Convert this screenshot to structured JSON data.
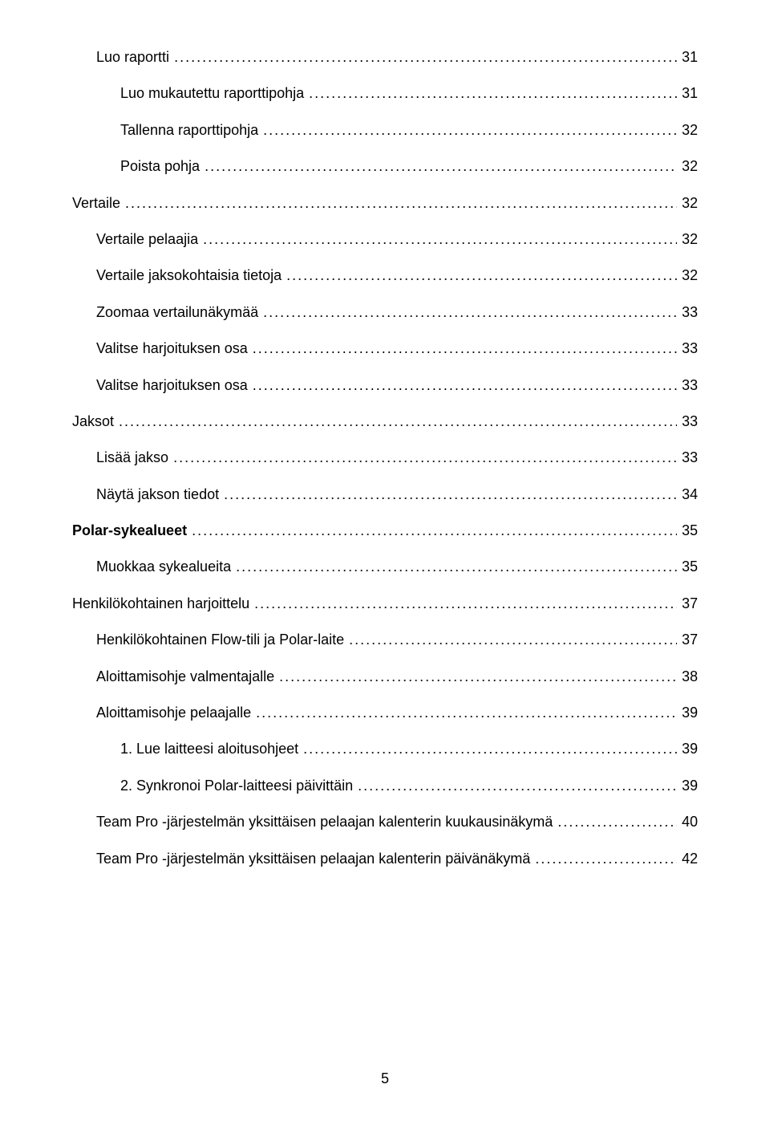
{
  "page_number": "5",
  "dots": "...............................................................................................................................................................................................................................................",
  "toc": [
    {
      "label": "Luo raportti",
      "page": "31",
      "indent": 1,
      "bold": false
    },
    {
      "label": "Luo mukautettu raporttipohja",
      "page": "31",
      "indent": 2,
      "bold": false
    },
    {
      "label": "Tallenna raporttipohja",
      "page": "32",
      "indent": 2,
      "bold": false
    },
    {
      "label": "Poista pohja",
      "page": "32",
      "indent": 2,
      "bold": false
    },
    {
      "label": "Vertaile",
      "page": "32",
      "indent": 0,
      "bold": false
    },
    {
      "label": "Vertaile pelaajia",
      "page": "32",
      "indent": 1,
      "bold": false
    },
    {
      "label": "Vertaile jaksokohtaisia tietoja",
      "page": "32",
      "indent": 1,
      "bold": false
    },
    {
      "label": "Zoomaa vertailunäkymää",
      "page": "33",
      "indent": 1,
      "bold": false
    },
    {
      "label": "Valitse harjoituksen osa",
      "page": "33",
      "indent": 1,
      "bold": false
    },
    {
      "label": "Valitse harjoituksen osa",
      "page": "33",
      "indent": 1,
      "bold": false
    },
    {
      "label": "Jaksot",
      "page": "33",
      "indent": 0,
      "bold": false
    },
    {
      "label": "Lisää jakso",
      "page": "33",
      "indent": 1,
      "bold": false
    },
    {
      "label": "Näytä jakson tiedot",
      "page": "34",
      "indent": 1,
      "bold": false
    },
    {
      "label": "Polar-sykealueet",
      "page": "35",
      "indent": 0,
      "bold": true
    },
    {
      "label": "Muokkaa sykealueita",
      "page": "35",
      "indent": 1,
      "bold": false
    },
    {
      "label": "Henkilökohtainen harjoittelu",
      "page": "37",
      "indent": 0,
      "bold": false
    },
    {
      "label": "Henkilökohtainen Flow-tili ja Polar-laite",
      "page": "37",
      "indent": 1,
      "bold": false
    },
    {
      "label": "Aloittamisohje valmentajalle",
      "page": "38",
      "indent": 1,
      "bold": false
    },
    {
      "label": "Aloittamisohje pelaajalle",
      "page": "39",
      "indent": 1,
      "bold": false
    },
    {
      "label": "1. Lue laitteesi aloitusohjeet",
      "page": "39",
      "indent": 2,
      "bold": false
    },
    {
      "label": "2. Synkronoi Polar-laitteesi päivittäin",
      "page": "39",
      "indent": 2,
      "bold": false
    },
    {
      "label": "Team Pro -järjestelmän yksittäisen pelaajan kalenterin kuukausinäkymä",
      "page": "40",
      "indent": 1,
      "bold": false
    },
    {
      "label": "Team Pro -järjestelmän yksittäisen pelaajan kalenterin päivänäkymä",
      "page": "42",
      "indent": 1,
      "bold": false
    }
  ],
  "styles": {
    "font_family": "Arial",
    "font_size_pt": 13,
    "text_color": "#000000",
    "background_color": "#ffffff",
    "leader_char": "."
  }
}
